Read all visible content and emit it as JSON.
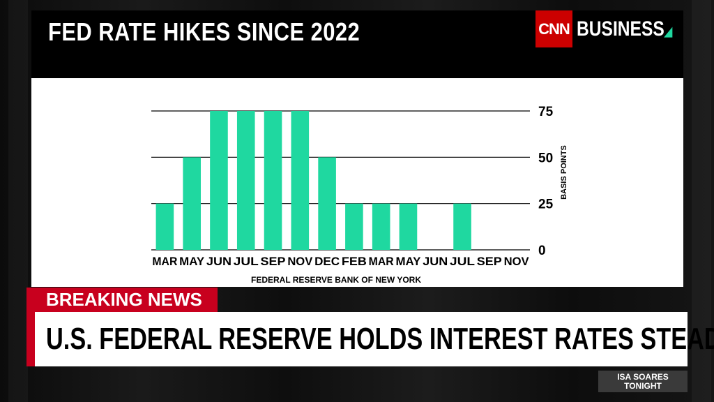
{
  "graphic": {
    "title": "FED RATE HIKES SINCE 2022",
    "brand_logo": "CNN",
    "brand_word": "BUSINESS"
  },
  "chart_data": {
    "type": "bar",
    "categories": [
      "MAR",
      "MAY",
      "JUN",
      "JUL",
      "SEP",
      "NOV",
      "DEC",
      "FEB",
      "MAR",
      "MAY",
      "JUN",
      "JUL",
      "SEP",
      "NOV"
    ],
    "values": [
      25,
      50,
      75,
      75,
      75,
      75,
      50,
      25,
      25,
      25,
      0,
      25,
      0,
      0
    ],
    "ylabel": "BASIS POINTS",
    "yticks": [
      0,
      25,
      50,
      75
    ],
    "ylim": [
      0,
      75
    ],
    "source": "FEDERAL RESERVE BANK OF NEW YORK",
    "bar_color": "#1fd8a0",
    "grid": true
  },
  "ticker": {
    "label": "BREAKING NEWS",
    "headline": "U.S. FEDERAL RESERVE HOLDS INTEREST RATES STEADY"
  },
  "show": {
    "line1": "ISA SOARES",
    "line2": "TONIGHT"
  },
  "colors": {
    "breaking_red": "#c8001e",
    "cnn_red": "#cc0000",
    "accent_green": "#1fd8a0"
  }
}
